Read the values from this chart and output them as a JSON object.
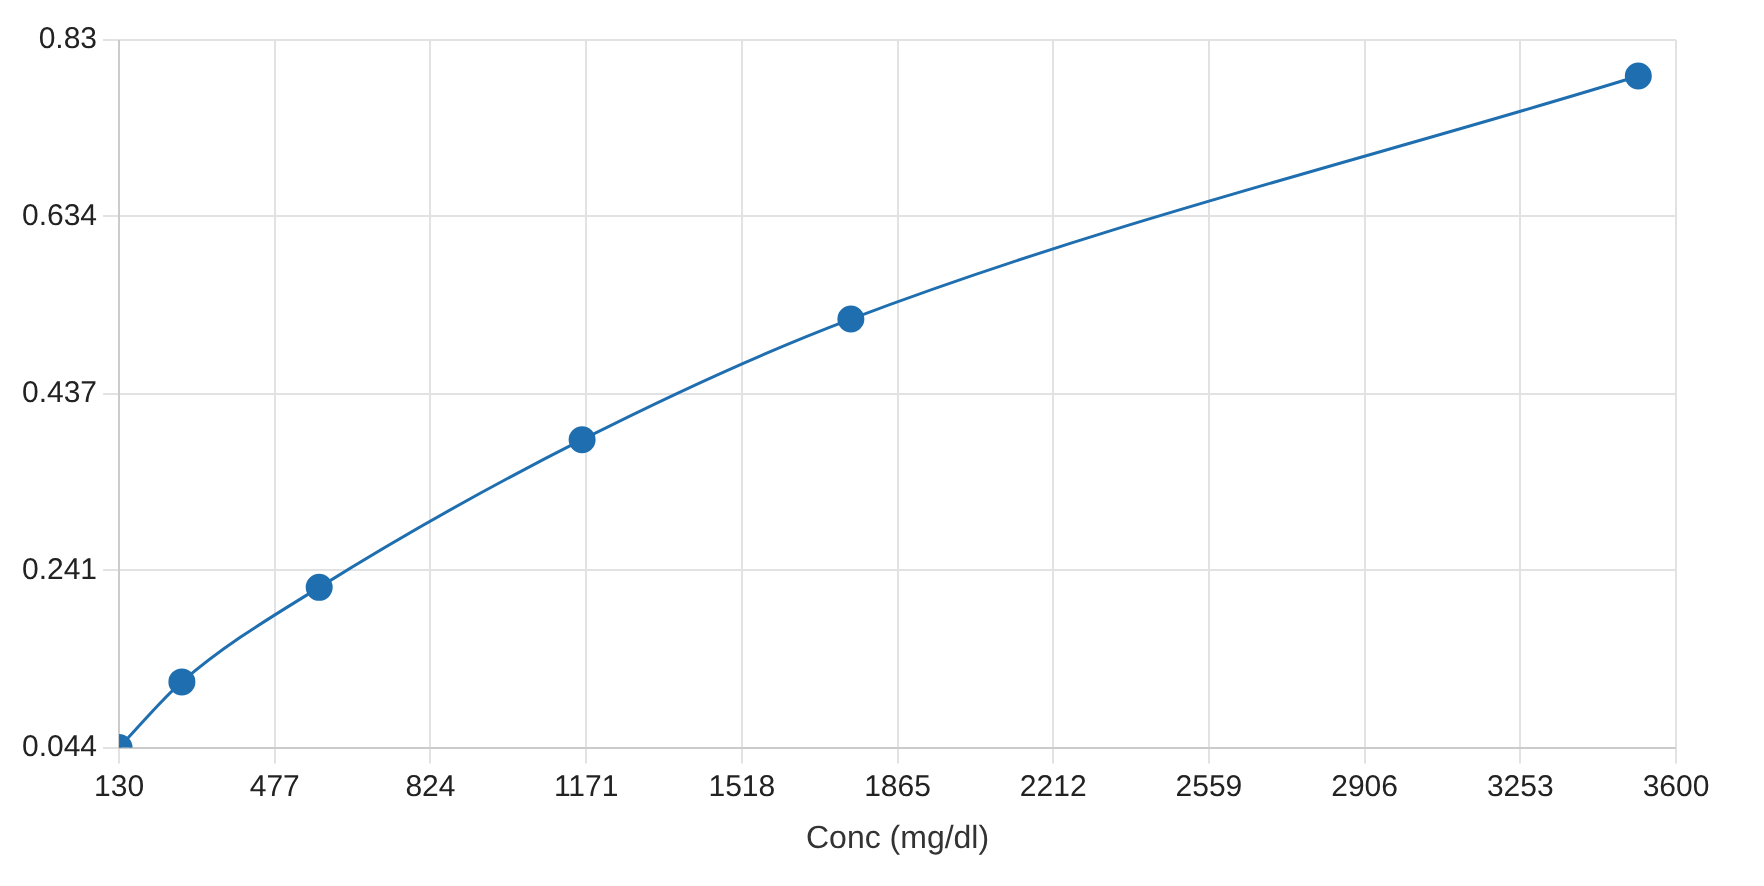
{
  "chart_data": {
    "type": "line",
    "xlabel": "Conc (mg/dl)",
    "x": [
      130,
      270,
      576,
      1162,
      1761,
      3516
    ],
    "series": [
      {
        "color": "#1f6fb0",
        "values": [
          0.044,
          0.117,
          0.222,
          0.386,
          0.52,
          0.79
        ]
      }
    ],
    "xlim": [
      130,
      3600
    ],
    "xticks": [
      130,
      477,
      824,
      1171,
      1518,
      1865,
      2212,
      2559,
      2906,
      3253,
      3600
    ],
    "ylim": [
      0.044,
      0.83
    ],
    "yticks": [
      0.044,
      0.241,
      0.437,
      0.634,
      0.83
    ],
    "grid": true,
    "marker": "circle",
    "line_style": "solid"
  }
}
